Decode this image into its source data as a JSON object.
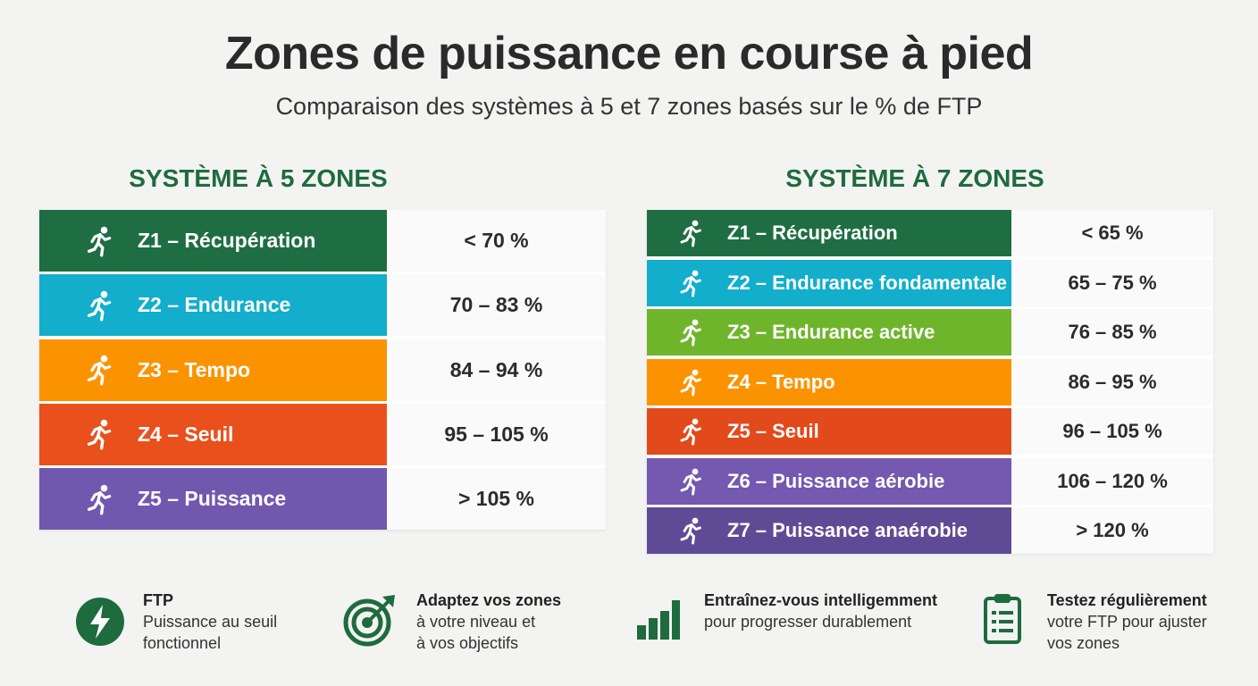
{
  "title": "Zones de puissance en course à pied",
  "subtitle": "Comparaison des systèmes à 5 et 7 zones basés sur le % de FTP",
  "system5": {
    "title": "SYSTÈME À 5 ZONES",
    "zones": [
      {
        "label": "Z1 – Récupération",
        "range": "< 70 %",
        "color": "#1f6e43"
      },
      {
        "label": "Z2 – Endurance",
        "range": "70 – 83 %",
        "color": "#12aecb"
      },
      {
        "label": "Z3 – Tempo",
        "range": "84 – 94 %",
        "color": "#fb9300"
      },
      {
        "label": "Z4 – Seuil",
        "range": "95 – 105 %",
        "color": "#e9501c"
      },
      {
        "label": "Z5 – Puissance",
        "range": "> 105 %",
        "color": "#7257ae"
      }
    ]
  },
  "system7": {
    "title": "SYSTÈME À 7 ZONES",
    "zones": [
      {
        "label": "Z1 – Récupération",
        "range": "< 65 %",
        "color": "#1f6e43"
      },
      {
        "label": "Z2 – Endurance fondamentale",
        "range": "65 – 75 %",
        "color": "#12aecb"
      },
      {
        "label": "Z3 – Endurance active",
        "range": "76 – 85 %",
        "color": "#6fb52c"
      },
      {
        "label": "Z4 – Tempo",
        "range": "86 – 95 %",
        "color": "#fb9300"
      },
      {
        "label": "Z5 – Seuil",
        "range": "96 – 105 %",
        "color": "#e24a1c"
      },
      {
        "label": "Z6 – Puissance aérobie",
        "range": "106 – 120 %",
        "color": "#7558af"
      },
      {
        "label": "Z7 – Puissance anaérobie",
        "range": "> 120 %",
        "color": "#5f4b95"
      }
    ]
  },
  "footer": [
    {
      "icon": "lightning-icon",
      "title": "FTP",
      "lines": [
        "Puissance au seuil",
        "fonctionnel"
      ]
    },
    {
      "icon": "target-icon",
      "title": "Adaptez vos zones",
      "lines": [
        "à votre niveau et",
        "à vos objectifs"
      ]
    },
    {
      "icon": "bar-chart-icon",
      "title": "Entraînez-vous intelligemment",
      "lines": [
        "pour progresser durablement"
      ]
    },
    {
      "icon": "clipboard-icon",
      "title": "Testez régulièrement",
      "lines": [
        "votre FTP pour ajuster",
        "vos zones"
      ]
    }
  ],
  "accent": "#1e6b3e"
}
